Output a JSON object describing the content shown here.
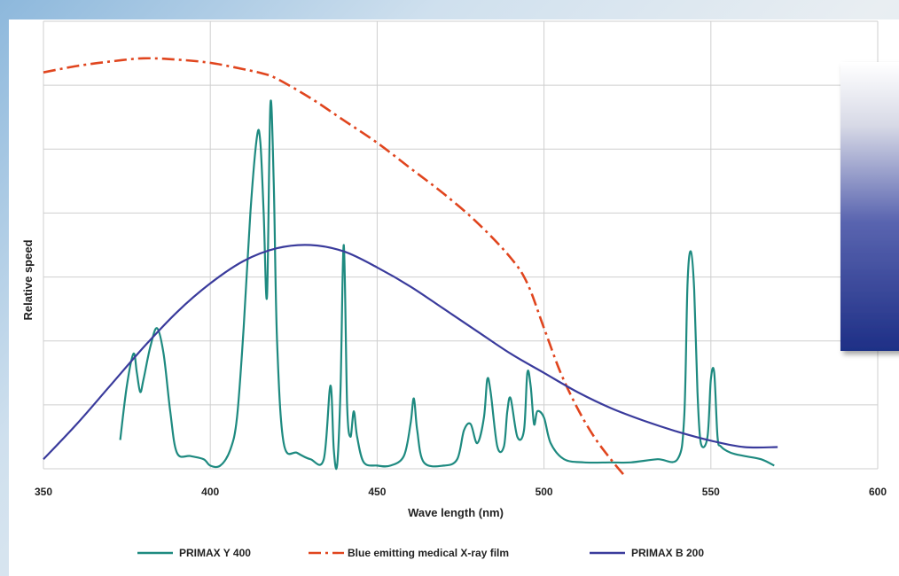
{
  "chart_data": {
    "type": "line",
    "title": "",
    "xlabel": "Wave length (nm)",
    "ylabel": "Relative speed",
    "xlim": [
      350,
      600
    ],
    "ylim": [
      0,
      7
    ],
    "x_ticks": [
      350,
      400,
      450,
      500,
      550,
      600
    ],
    "grid": true,
    "legend_position": "bottom",
    "series": [
      {
        "name": "PRIMAX Y 400",
        "color": "#1e8a80",
        "style": "solid",
        "points": [
          [
            373,
            0.45
          ],
          [
            375,
            1.3
          ],
          [
            377,
            1.8
          ],
          [
            378,
            1.5
          ],
          [
            379,
            1.2
          ],
          [
            380,
            1.4
          ],
          [
            382,
            1.9
          ],
          [
            384,
            2.2
          ],
          [
            386,
            1.8
          ],
          [
            388,
            0.9
          ],
          [
            390,
            0.25
          ],
          [
            394,
            0.2
          ],
          [
            398,
            0.15
          ],
          [
            400,
            0.05
          ],
          [
            403,
            0.05
          ],
          [
            406,
            0.3
          ],
          [
            408,
            0.8
          ],
          [
            410,
            2.2
          ],
          [
            412,
            4.0
          ],
          [
            414,
            5.2
          ],
          [
            415,
            5.1
          ],
          [
            416,
            4.0
          ],
          [
            417,
            2.7
          ],
          [
            418,
            5.7
          ],
          [
            419,
            4.5
          ],
          [
            420,
            2.0
          ],
          [
            422,
            0.4
          ],
          [
            426,
            0.25
          ],
          [
            430,
            0.15
          ],
          [
            434,
            0.15
          ],
          [
            436,
            1.3
          ],
          [
            437,
            0.3
          ],
          [
            438,
            0.05
          ],
          [
            439,
            1.2
          ],
          [
            440,
            3.5
          ],
          [
            441,
            1.0
          ],
          [
            442,
            0.5
          ],
          [
            443,
            0.9
          ],
          [
            444,
            0.5
          ],
          [
            446,
            0.1
          ],
          [
            450,
            0.05
          ],
          [
            454,
            0.05
          ],
          [
            458,
            0.2
          ],
          [
            460,
            0.7
          ],
          [
            461,
            1.1
          ],
          [
            462,
            0.6
          ],
          [
            464,
            0.1
          ],
          [
            470,
            0.05
          ],
          [
            474,
            0.15
          ],
          [
            476,
            0.6
          ],
          [
            478,
            0.7
          ],
          [
            480,
            0.4
          ],
          [
            482,
            0.8
          ],
          [
            483,
            1.4
          ],
          [
            484,
            1.2
          ],
          [
            486,
            0.35
          ],
          [
            488,
            0.35
          ],
          [
            489,
            0.9
          ],
          [
            490,
            1.1
          ],
          [
            492,
            0.5
          ],
          [
            494,
            0.6
          ],
          [
            495,
            1.5
          ],
          [
            496,
            1.3
          ],
          [
            497,
            0.7
          ],
          [
            498,
            0.9
          ],
          [
            500,
            0.8
          ],
          [
            502,
            0.4
          ],
          [
            506,
            0.15
          ],
          [
            512,
            0.1
          ],
          [
            520,
            0.1
          ],
          [
            526,
            0.1
          ],
          [
            534,
            0.15
          ],
          [
            540,
            0.15
          ],
          [
            542,
            0.8
          ],
          [
            543,
            2.9
          ],
          [
            544,
            3.4
          ],
          [
            545,
            2.8
          ],
          [
            546,
            1.2
          ],
          [
            547,
            0.4
          ],
          [
            549,
            0.5
          ],
          [
            550,
            1.4
          ],
          [
            551,
            1.5
          ],
          [
            552,
            0.5
          ],
          [
            553,
            0.35
          ],
          [
            556,
            0.25
          ],
          [
            560,
            0.2
          ],
          [
            565,
            0.15
          ],
          [
            569,
            0.05
          ]
        ]
      },
      {
        "name": "Blue emitting medical X-ray film",
        "color": "#e0451e",
        "style": "dashdot",
        "points": [
          [
            350,
            6.2
          ],
          [
            360,
            6.3
          ],
          [
            370,
            6.37
          ],
          [
            380,
            6.42
          ],
          [
            390,
            6.4
          ],
          [
            400,
            6.35
          ],
          [
            410,
            6.25
          ],
          [
            416,
            6.18
          ],
          [
            420,
            6.1
          ],
          [
            430,
            5.8
          ],
          [
            440,
            5.45
          ],
          [
            450,
            5.1
          ],
          [
            460,
            4.7
          ],
          [
            470,
            4.3
          ],
          [
            480,
            3.85
          ],
          [
            490,
            3.3
          ],
          [
            495,
            2.9
          ],
          [
            500,
            2.2
          ],
          [
            505,
            1.5
          ],
          [
            510,
            0.95
          ],
          [
            515,
            0.5
          ],
          [
            520,
            0.15
          ],
          [
            524,
            -0.1
          ]
        ]
      },
      {
        "name": "PRIMAX B 200",
        "color": "#3a3b9c",
        "style": "solid",
        "points": [
          [
            350,
            0.15
          ],
          [
            360,
            0.7
          ],
          [
            370,
            1.3
          ],
          [
            380,
            1.9
          ],
          [
            390,
            2.45
          ],
          [
            400,
            2.9
          ],
          [
            410,
            3.25
          ],
          [
            420,
            3.45
          ],
          [
            430,
            3.5
          ],
          [
            440,
            3.4
          ],
          [
            450,
            3.15
          ],
          [
            460,
            2.85
          ],
          [
            470,
            2.5
          ],
          [
            480,
            2.15
          ],
          [
            490,
            1.8
          ],
          [
            500,
            1.5
          ],
          [
            510,
            1.2
          ],
          [
            520,
            0.95
          ],
          [
            530,
            0.75
          ],
          [
            540,
            0.58
          ],
          [
            550,
            0.44
          ],
          [
            560,
            0.34
          ],
          [
            570,
            0.34
          ]
        ]
      }
    ]
  }
}
